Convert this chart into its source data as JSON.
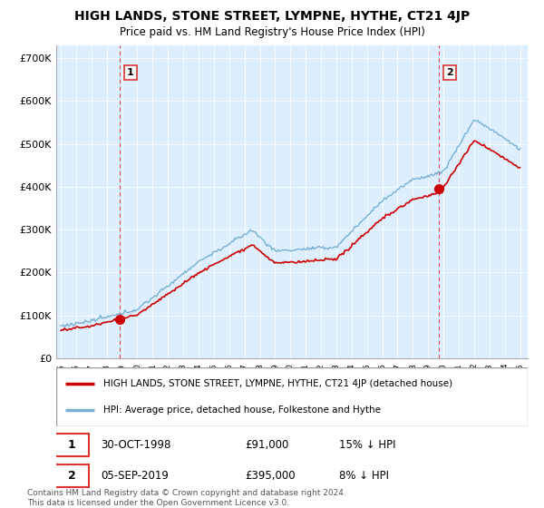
{
  "title": "HIGH LANDS, STONE STREET, LYMPNE, HYTHE, CT21 4JP",
  "subtitle": "Price paid vs. HM Land Registry's House Price Index (HPI)",
  "legend_line1": "HIGH LANDS, STONE STREET, LYMPNE, HYTHE, CT21 4JP (detached house)",
  "legend_line2": "HPI: Average price, detached house, Folkestone and Hythe",
  "sale1_date": "30-OCT-1998",
  "sale1_price": "£91,000",
  "sale1_hpi": "15% ↓ HPI",
  "sale2_date": "05-SEP-2019",
  "sale2_price": "£395,000",
  "sale2_hpi": "8% ↓ HPI",
  "footer": "Contains HM Land Registry data © Crown copyright and database right 2024.\nThis data is licensed under the Open Government Licence v3.0.",
  "red_line_color": "#cc0000",
  "blue_line_color": "#7ab0d4",
  "chart_bg_color": "#ddeeff",
  "grid_color": "#ffffff",
  "vline_color": "#dd3333",
  "sale1_year": 1998.83,
  "sale2_year": 2019.67,
  "ylim_max": 700000,
  "yticks": [
    0,
    100000,
    200000,
    300000,
    400000,
    500000,
    600000,
    700000
  ],
  "ytick_labels": [
    "£0",
    "£100K",
    "£200K",
    "£300K",
    "£400K",
    "£500K",
    "£600K",
    "£700K"
  ]
}
